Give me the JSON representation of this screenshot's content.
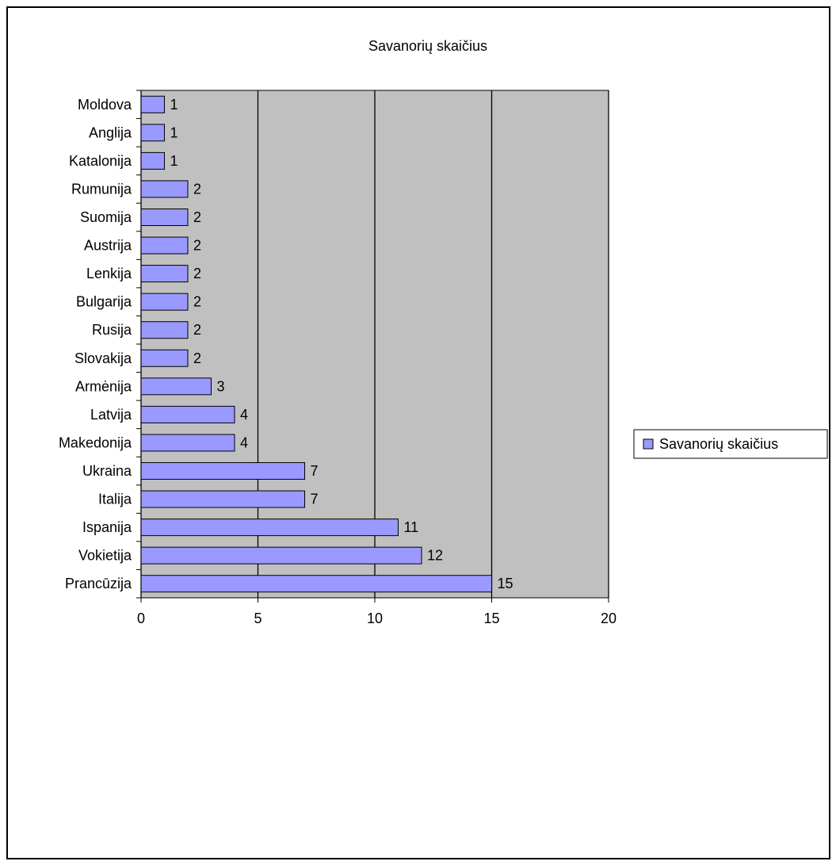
{
  "chart_data": {
    "type": "bar",
    "orientation": "horizontal",
    "title": "Savanorių skaičius",
    "xlabel": "",
    "ylabel": "",
    "xlim": [
      0,
      20
    ],
    "x_ticks": [
      0,
      5,
      10,
      15,
      20
    ],
    "grid": "vertical",
    "legend": "right",
    "categories": [
      "Moldova",
      "Anglija",
      "Katalonija",
      "Rumunija",
      "Suomija",
      "Austrija",
      "Lenkija",
      "Bulgarija",
      "Rusija",
      "Slovakija",
      "Armėnija",
      "Latvija",
      "Makedonija",
      "Ukraina",
      "Italija",
      "Ispanija",
      "Vokietija",
      "Prancūzija"
    ],
    "series": [
      {
        "name": "Savanorių skaičius",
        "values": [
          1,
          1,
          1,
          2,
          2,
          2,
          2,
          2,
          2,
          2,
          3,
          4,
          4,
          7,
          7,
          11,
          12,
          15
        ]
      }
    ],
    "colors": {
      "bar_fill": "#9999ff",
      "plot_background": "#c0c0c0",
      "border": "#000000"
    }
  }
}
